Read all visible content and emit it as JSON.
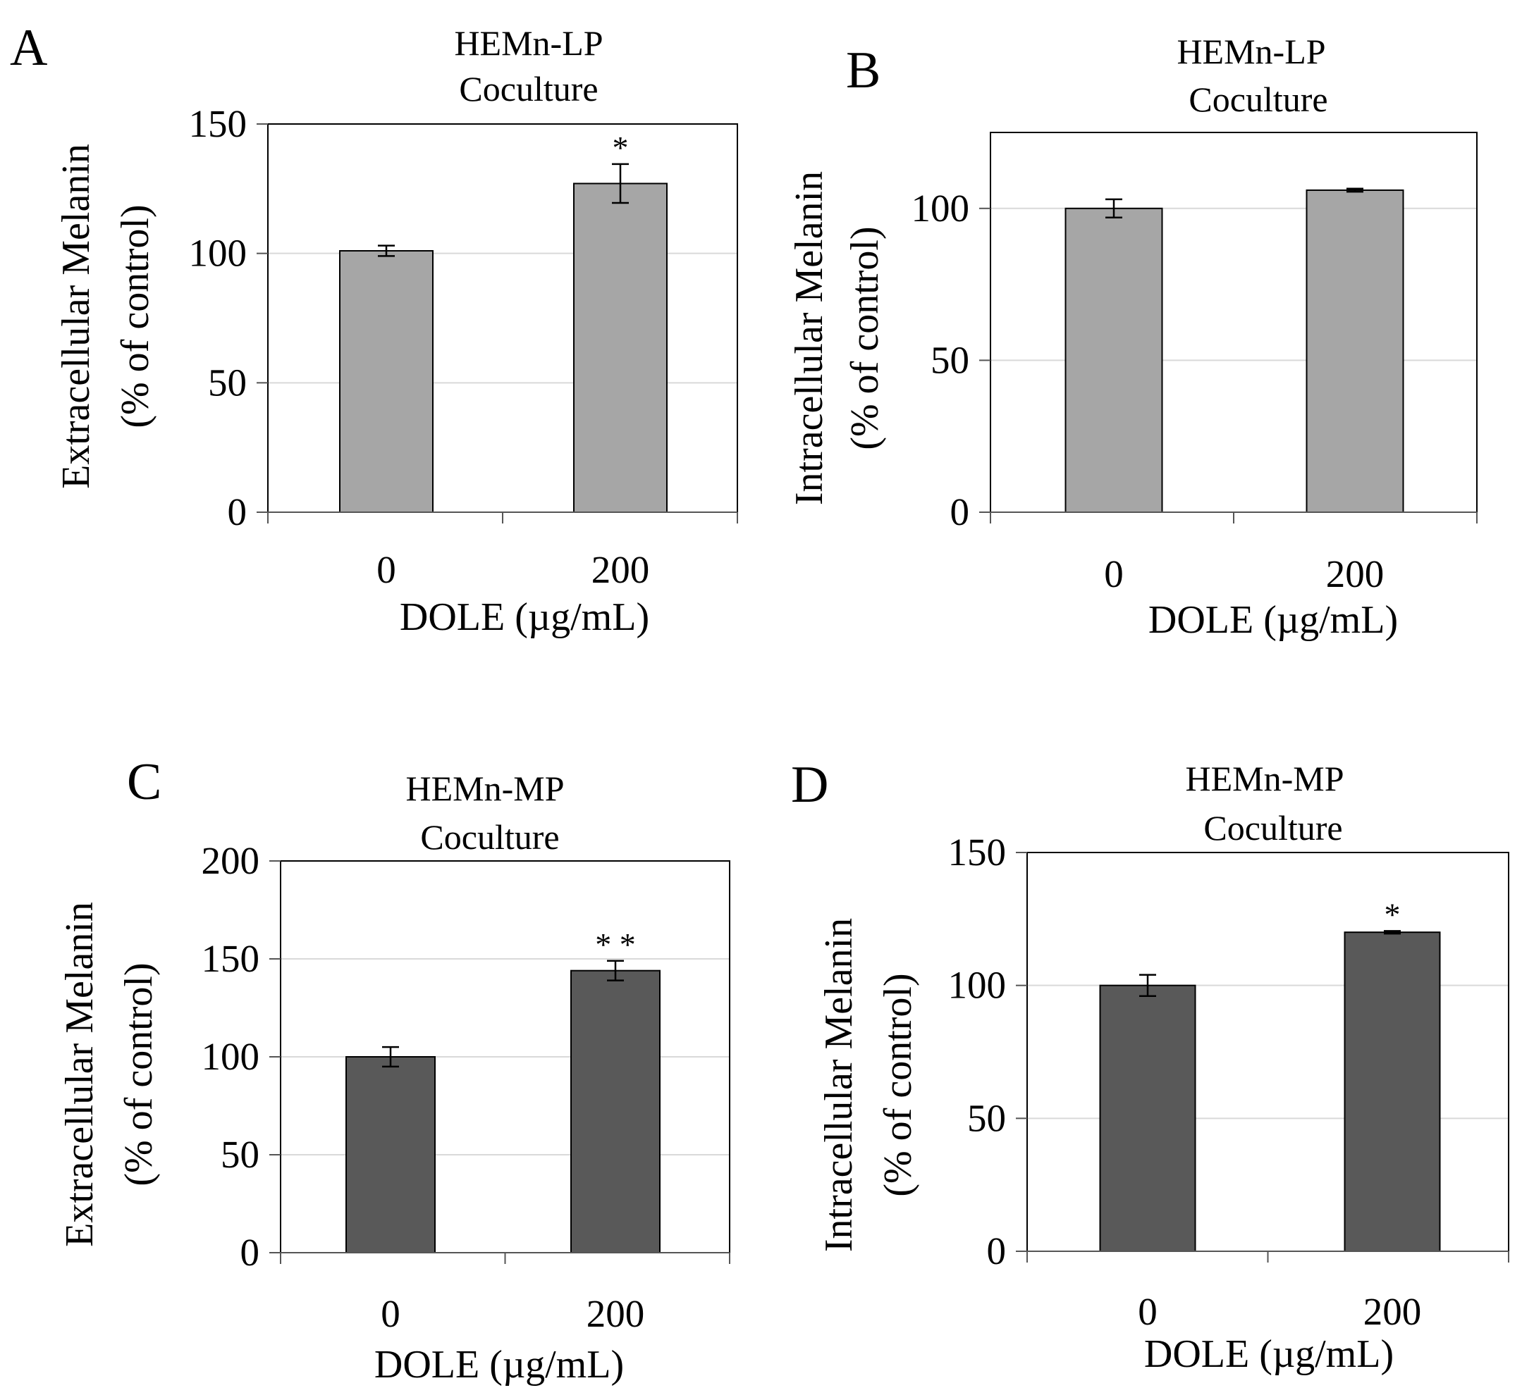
{
  "chart_data": [
    {
      "panel": "A",
      "type": "bar",
      "title_lines": [
        "HEMn-LP",
        "Coculture"
      ],
      "ylabel_lines": [
        "Extracellular Melanin",
        "(% of control)"
      ],
      "xlabel": "DOLE (µg/mL)",
      "categories": [
        "0",
        "200"
      ],
      "values": [
        101,
        127
      ],
      "errors": [
        2,
        7.5
      ],
      "significance": [
        "",
        "*"
      ],
      "ylim": [
        0,
        150
      ],
      "yticks": [
        0,
        50,
        100,
        150
      ],
      "ytick_labels": [
        "0",
        "50",
        "100",
        "150"
      ],
      "gridlines": [
        50,
        100
      ],
      "bar_color": "#a6a6a6",
      "frame_top_value": 150
    },
    {
      "panel": "B",
      "type": "bar",
      "title_lines": [
        "HEMn-LP",
        "Coculture"
      ],
      "ylabel_lines": [
        "Intracellular Melanin",
        "(% of control)"
      ],
      "xlabel": "DOLE (µg/mL)",
      "categories": [
        "0",
        "200"
      ],
      "values": [
        100,
        106
      ],
      "errors": [
        3,
        0.5
      ],
      "significance": [
        "",
        ""
      ],
      "ylim": [
        0,
        125
      ],
      "yticks": [
        0,
        50,
        100
      ],
      "ytick_labels": [
        "0",
        "50",
        "100"
      ],
      "gridlines": [
        50,
        100
      ],
      "bar_color": "#a6a6a6",
      "frame_top_value": 125
    },
    {
      "panel": "C",
      "type": "bar",
      "title_lines": [
        "HEMn-MP",
        "Coculture"
      ],
      "ylabel_lines": [
        "Extracellular Melanin",
        "(% of control)"
      ],
      "xlabel": "DOLE (µg/mL)",
      "categories": [
        "0",
        "200"
      ],
      "values": [
        100,
        144
      ],
      "errors": [
        5,
        5
      ],
      "significance": [
        "",
        "* *"
      ],
      "ylim": [
        0,
        200
      ],
      "yticks": [
        0,
        50,
        100,
        150,
        200
      ],
      "ytick_labels": [
        "0",
        "50",
        "100",
        "150",
        "200"
      ],
      "gridlines": [
        50,
        100,
        150
      ],
      "bar_color": "#595959",
      "frame_top_value": 200
    },
    {
      "panel": "D",
      "type": "bar",
      "title_lines": [
        "HEMn-MP",
        "Coculture"
      ],
      "ylabel_lines": [
        "Intracellular Melanin",
        "(% of control)"
      ],
      "xlabel": "DOLE (µg/mL)",
      "categories": [
        "0",
        "200"
      ],
      "values": [
        100,
        120
      ],
      "errors": [
        4,
        0.5
      ],
      "significance": [
        "",
        "*"
      ],
      "ylim": [
        0,
        150
      ],
      "yticks": [
        0,
        50,
        100,
        150
      ],
      "ytick_labels": [
        "0",
        "50",
        "100",
        "150"
      ],
      "gridlines": [
        50,
        100
      ],
      "bar_color": "#595959",
      "frame_top_value": 150
    }
  ]
}
